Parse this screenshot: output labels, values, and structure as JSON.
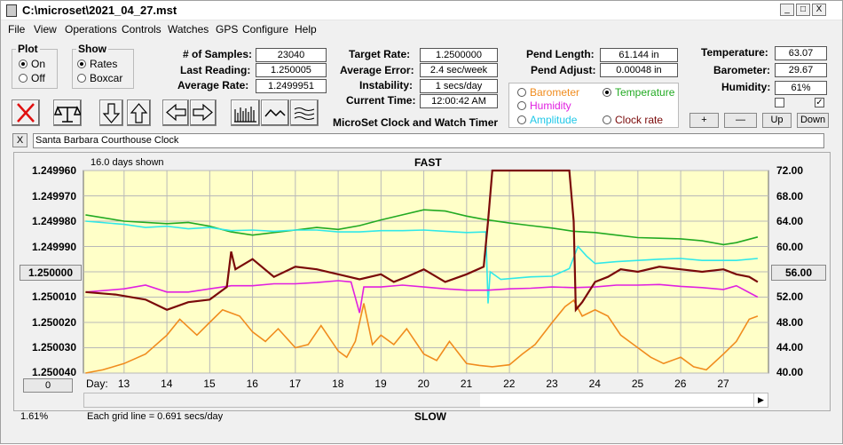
{
  "window": {
    "title": "C:\\microset\\2021_04_27.mst",
    "minimize": "_",
    "maximize": "□",
    "close": "X"
  },
  "menu": [
    "File",
    "View",
    "Operations",
    "Controls",
    "Watches",
    "GPS",
    "Configure",
    "Help"
  ],
  "plot_group": {
    "title": "Plot",
    "on": "On",
    "off": "Off",
    "selected": "On"
  },
  "show_group": {
    "title": "Show",
    "rates": "Rates",
    "boxcar": "Boxcar",
    "selected": "Rates"
  },
  "stats": {
    "samples_label": "# of Samples:",
    "samples": "23040",
    "last_label": "Last Reading:",
    "last": "1.250005",
    "avg_label": "Average Rate:",
    "avg": "1.2499951"
  },
  "target": {
    "target_label": "Target Rate:",
    "target": "1.2500000",
    "error_label": "Average Error:",
    "error": "2.4 sec/week",
    "instab_label": "Instability:",
    "instab": "1 secs/day",
    "time_label": "Current Time:",
    "time": "12:00:42 AM",
    "app_name": "MicroSet Clock and Watch Timer"
  },
  "pend": {
    "length_label": "Pend Length:",
    "length": "61.144 in",
    "adjust_label": "Pend Adjust:",
    "adjust": "0.00048 in"
  },
  "env": {
    "temp_label": "Temperature:",
    "temp": "63.07",
    "baro_label": "Barometer:",
    "baro": "29.67",
    "hum_label": "Humidity:",
    "hum": "61%"
  },
  "series_select": {
    "barometer": "Barometer",
    "temperature": "Temperature",
    "humidity": "Humidity",
    "amplitude": "Amplitude",
    "clock_rate": "Clock rate",
    "selected": "Temperature"
  },
  "small_buttons": {
    "plus": "+",
    "minus": "—",
    "up": "Up",
    "down": "Down"
  },
  "clock_name": {
    "close": "X",
    "name": "Santa Barbara Courthouse Clock"
  },
  "chart_header": {
    "days_shown": "16.0 days shown",
    "fast": "FAST",
    "slow": "SLOW",
    "grid_note": "Each grid line = 0.691 secs/day",
    "percent": "1.61%",
    "left_value_button": "1.250000",
    "right_value_button": "56.00",
    "zero_button": "0"
  },
  "colors": {
    "plot_bg": "#ffffc8",
    "barometer": "#f08c1e",
    "temperature": "#22aa22",
    "humidity": "#e020e0",
    "amplitude": "#30e8e8",
    "clock_rate": "#7a0a0a"
  },
  "chart_data": {
    "type": "line",
    "x_label": "Day:",
    "x_ticks": [
      "13",
      "14",
      "15",
      "16",
      "17",
      "18",
      "19",
      "20",
      "21",
      "22",
      "23",
      "24",
      "25",
      "26",
      "27"
    ],
    "xlim": [
      12.05,
      28.05
    ],
    "y_left_ticks": [
      "1.249960",
      "1.249970",
      "1.249980",
      "1.249990",
      "1.250000",
      "1.250010",
      "1.250020",
      "1.250030",
      "1.250040"
    ],
    "y_left_range": [
      1.24996,
      1.25004
    ],
    "y_right_ticks": [
      "72.00",
      "68.00",
      "64.00",
      "60.00",
      "56.00",
      "52.00",
      "48.00",
      "44.00",
      "40.00"
    ],
    "y_right_range": [
      40,
      72
    ],
    "grid": true,
    "series": [
      {
        "key": "temperature",
        "axis": "right",
        "x": [
          12.1,
          13,
          14,
          14.5,
          15,
          15.5,
          16,
          16.5,
          17,
          17.5,
          18,
          18.5,
          19,
          19.5,
          20,
          20.5,
          21,
          21.4,
          22,
          22.5,
          23,
          23.5,
          24,
          24.5,
          25,
          25.5,
          26,
          26.5,
          27,
          27.3,
          27.8
        ],
        "y": [
          65,
          64,
          63.6,
          63.8,
          63.2,
          62.3,
          61.8,
          62.2,
          62.6,
          63,
          62.7,
          63.3,
          64.2,
          65,
          65.8,
          65.6,
          64.8,
          64.3,
          63.7,
          63.3,
          62.9,
          62.4,
          62.2,
          61.8,
          61.4,
          61.3,
          61.2,
          60.9,
          60.3,
          60.6,
          61.5
        ]
      },
      {
        "key": "amplitude",
        "axis": "right",
        "x": [
          12.1,
          13,
          13.5,
          14,
          14.5,
          15,
          15.5,
          16,
          16.5,
          17,
          17.5,
          18,
          18.5,
          19,
          19.5,
          20,
          20.5,
          21,
          21.45,
          21.5,
          21.55,
          21.8,
          22.5,
          23,
          23.4,
          23.6,
          23.8,
          24,
          24.5,
          25,
          25.5,
          26,
          26.5,
          27,
          27.3,
          27.8
        ],
        "y": [
          64,
          63.5,
          63,
          63.2,
          62.8,
          63,
          62.5,
          62.6,
          62.4,
          62.6,
          62.6,
          62.3,
          62.3,
          62.5,
          62.5,
          62.6,
          62.4,
          62.2,
          62.3,
          51,
          56,
          54.8,
          55.2,
          55.3,
          56.5,
          60,
          58.5,
          57.3,
          57.6,
          57.8,
          58,
          58.1,
          57.8,
          57.8,
          57.8,
          58.1
        ]
      },
      {
        "key": "humidity",
        "axis": "right",
        "x": [
          12.1,
          13,
          13.5,
          14,
          14.5,
          15,
          15.5,
          16,
          16.5,
          17,
          17.5,
          18,
          18.3,
          18.5,
          18.6,
          18.8,
          19,
          19.5,
          20,
          20.5,
          21,
          21.5,
          22,
          22.5,
          23,
          23.5,
          24,
          24.5,
          25,
          25.5,
          26,
          26.5,
          27,
          27.3,
          27.8
        ],
        "y": [
          52.8,
          53.3,
          53.9,
          52.8,
          52.8,
          53.3,
          53.8,
          53.8,
          54.1,
          54.1,
          54.3,
          54.6,
          54.4,
          49.5,
          53.6,
          53.6,
          53.6,
          53.9,
          53.6,
          53.3,
          53.1,
          53.1,
          53.3,
          53.4,
          53.6,
          53.5,
          53.6,
          53.9,
          53.9,
          54,
          53.7,
          53.5,
          53.2,
          53.8,
          52
        ]
      },
      {
        "key": "barometer",
        "axis": "right",
        "x": [
          12.1,
          12.5,
          13,
          13.5,
          14,
          14.3,
          14.7,
          15,
          15.3,
          15.7,
          16,
          16.3,
          16.6,
          17,
          17.3,
          17.6,
          18,
          18.2,
          18.4,
          18.6,
          18.8,
          19,
          19.3,
          19.6,
          20,
          20.3,
          20.6,
          21,
          21.3,
          21.6,
          22,
          22.3,
          22.6,
          23,
          23.3,
          23.5,
          23.7,
          24,
          24.3,
          24.6,
          25,
          25.3,
          25.6,
          26,
          26.3,
          26.6,
          27,
          27.3,
          27.6,
          27.8
        ],
        "y": [
          40,
          40.5,
          41.5,
          43,
          46,
          48.5,
          46,
          48,
          50,
          49,
          46.5,
          45,
          47,
          44,
          44.5,
          47.5,
          43.5,
          42.5,
          45,
          51,
          44.5,
          46,
          44.5,
          47,
          43,
          42,
          45,
          41.5,
          41.2,
          41,
          41.3,
          43,
          44.5,
          48,
          50.5,
          51.5,
          49,
          50,
          49,
          46,
          44,
          42.5,
          41.5,
          42.5,
          41,
          40.5,
          43,
          45,
          48.5,
          49
        ]
      },
      {
        "key": "clock_rate",
        "axis": "left",
        "x": [
          12.1,
          12.8,
          13.5,
          14,
          14.5,
          15,
          15.4,
          15.5,
          15.6,
          16,
          16.5,
          17,
          17.5,
          18,
          18.5,
          19,
          19.3,
          19.6,
          20,
          20.5,
          21,
          21.4,
          21.5,
          21.6,
          21.7,
          23.4,
          23.5,
          23.55,
          23.7,
          24,
          24.3,
          24.6,
          25,
          25.5,
          26,
          26.5,
          27,
          27.3,
          27.6,
          27.8
        ],
        "y": [
          1.250008,
          1.250009,
          1.250011,
          1.250015,
          1.250012,
          1.250011,
          1.250006,
          1.249992,
          1.249999,
          1.249995,
          1.250002,
          1.249998,
          1.249999,
          1.250001,
          1.250003,
          1.250001,
          1.250004,
          1.250002,
          1.249999,
          1.250004,
          1.250001,
          1.249998,
          1.24998,
          1.24996,
          1.24996,
          1.24996,
          1.24998,
          1.250015,
          1.250012,
          1.250004,
          1.250002,
          1.249999,
          1.25,
          1.249998,
          1.249999,
          1.25,
          1.249999,
          1.250001,
          1.250002,
          1.250004
        ]
      }
    ]
  }
}
